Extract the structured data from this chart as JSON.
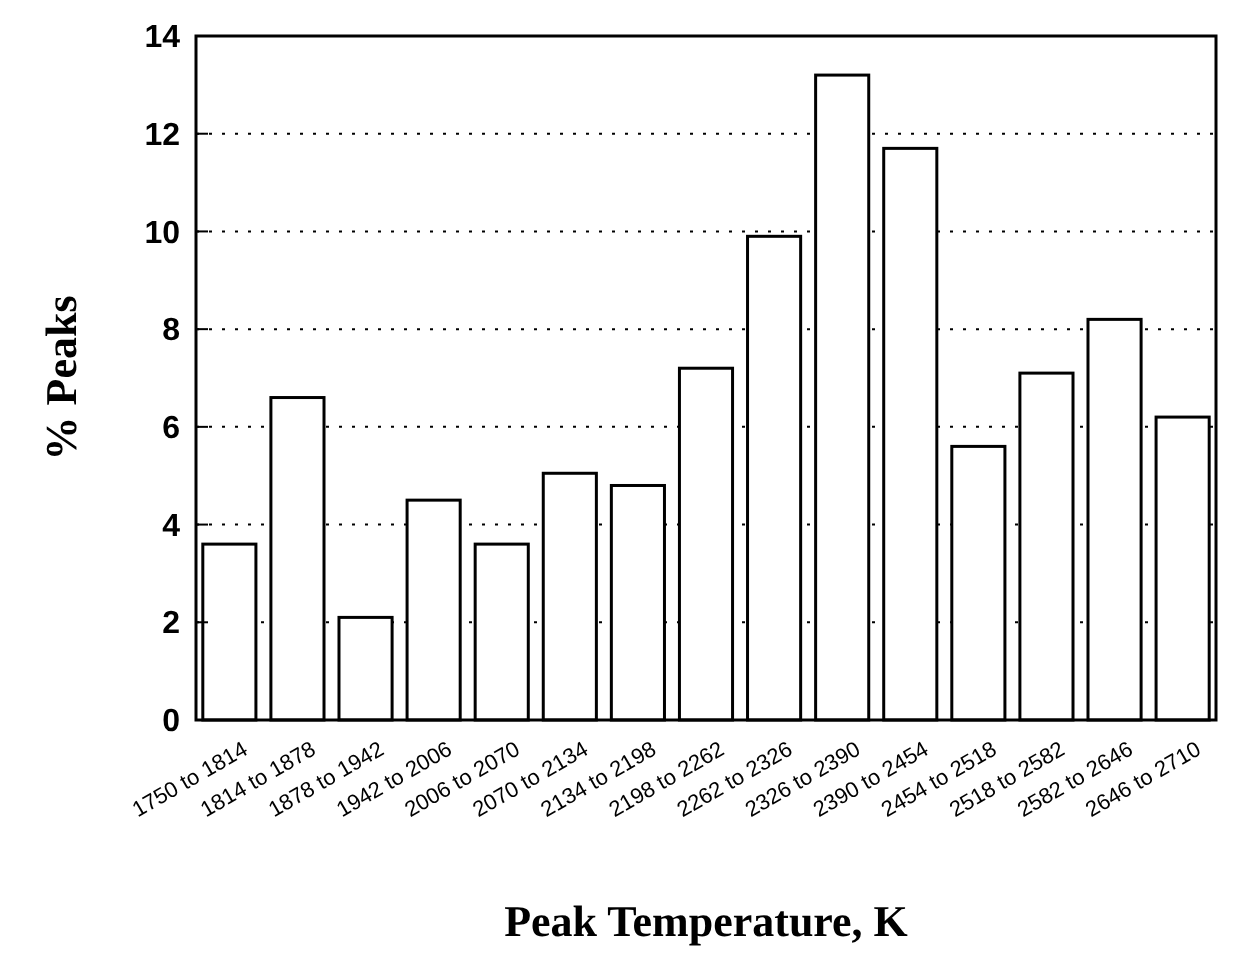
{
  "chart_data": {
    "type": "bar",
    "xlabel": "Peak Temperature, K",
    "ylabel": "% Peaks",
    "categories": [
      "1750 to 1814",
      "1814 to 1878",
      "1878 to 1942",
      "1942 to 2006",
      "2006 to 2070",
      "2070 to 2134",
      "2134 to 2198",
      "2198 to 2262",
      "2262 to 2326",
      "2326 to 2390",
      "2390 to 2454",
      "2454 to 2518",
      "2518 to 2582",
      "2582 to 2646",
      "2646 to 2710"
    ],
    "values": [
      3.6,
      6.6,
      2.1,
      4.5,
      3.6,
      5.05,
      4.8,
      7.2,
      9.9,
      13.2,
      11.7,
      5.6,
      7.1,
      8.2,
      6.2
    ],
    "color": "#ffffff",
    "ylim": [
      0,
      14
    ],
    "yticks": [
      0,
      2,
      4,
      6,
      8,
      10,
      12,
      14
    ],
    "grid": "y"
  }
}
